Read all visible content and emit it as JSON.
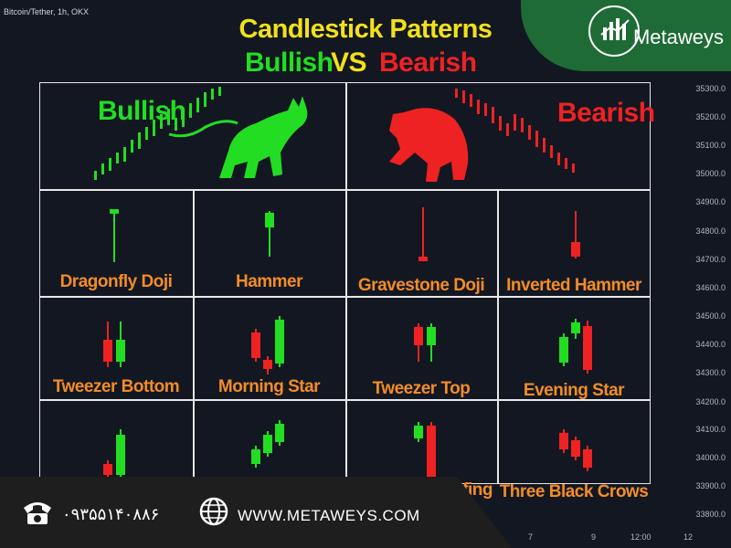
{
  "chart_header": "Bitcoin/Tether, 1h, OKX",
  "title": "Candlestick Patterns",
  "subtitle": {
    "bullish": "Bullish",
    "vs": "VS",
    "bearish": "Bearish"
  },
  "banner": {
    "bullish": "Bullish",
    "bearish": "Bearish"
  },
  "patterns": {
    "dragonfly": "Dragonfly Doji",
    "hammer": "Hammer",
    "gravestone": "Gravestone Doji",
    "inverted_hammer": "Inverted Hammer",
    "tweezer_bottom": "Tweezer Bottom",
    "morning_star": "Morning Star",
    "tweezer_top": "Tweezer Top",
    "evening_star": "Evening Star",
    "bearish_engulfing_partial": "h Engulfing",
    "three_black_crows": "Three Black Crows"
  },
  "price_axis": [
    "35300.0",
    "35200.0",
    "35100.0",
    "35000.0",
    "34900.0",
    "34800.0",
    "34700.0",
    "34600.0",
    "34500.0",
    "34400.0",
    "34300.0",
    "34200.0",
    "34100.0",
    "34000.0",
    "33900.0",
    "33800.0"
  ],
  "time_axis": [
    "7",
    "9",
    "12:00",
    "12"
  ],
  "brand": {
    "name": "Metaweys"
  },
  "footer": {
    "phone": "۰۹۳۵۵۱۴۰۸۸۶",
    "website": "WWW.METAWEYS.COM"
  },
  "colors": {
    "bull": "#22dd22",
    "bear": "#ee2222",
    "label": "#f28c28",
    "title": "#f2e11a",
    "bg": "#131722"
  },
  "icons": [
    "phone-icon",
    "globe-icon",
    "logo-icon",
    "bull-icon",
    "bear-icon"
  ]
}
